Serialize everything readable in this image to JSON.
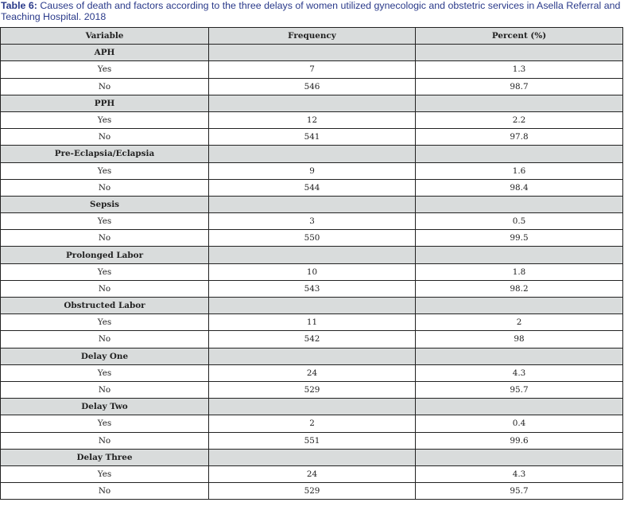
{
  "caption": {
    "label": "Table 6:",
    "text": " Causes of death and factors according to the three delays of women utilized gynecologic and obstetric services in Asella Referral and Teaching Hospital. 2018"
  },
  "table": {
    "headers": [
      "Variable",
      "Frequency",
      "Percent (%)"
    ],
    "groups": [
      {
        "name": "APH",
        "rows": [
          [
            "Yes",
            "7",
            "1.3"
          ],
          [
            "No",
            "546",
            "98.7"
          ]
        ]
      },
      {
        "name": "PPH",
        "rows": [
          [
            "Yes",
            "12",
            "2.2"
          ],
          [
            "No",
            "541",
            "97.8"
          ]
        ]
      },
      {
        "name": "Pre-Eclapsia/Eclapsia",
        "rows": [
          [
            "Yes",
            "9",
            "1.6"
          ],
          [
            "No",
            "544",
            "98.4"
          ]
        ]
      },
      {
        "name": "Sepsis",
        "rows": [
          [
            "Yes",
            "3",
            "0.5"
          ],
          [
            "No",
            "550",
            "99.5"
          ]
        ]
      },
      {
        "name": "Prolonged Labor",
        "rows": [
          [
            "Yes",
            "10",
            "1.8"
          ],
          [
            "No",
            "543",
            "98.2"
          ]
        ]
      },
      {
        "name": "Obstructed Labor",
        "rows": [
          [
            "Yes",
            "11",
            "2"
          ],
          [
            "No",
            "542",
            "98"
          ]
        ]
      },
      {
        "name": "Delay One",
        "rows": [
          [
            "Yes",
            "24",
            "4.3"
          ],
          [
            "No",
            "529",
            "95.7"
          ]
        ]
      },
      {
        "name": "Delay Two",
        "rows": [
          [
            "Yes",
            "2",
            "0.4"
          ],
          [
            "No",
            "551",
            "99.6"
          ]
        ]
      },
      {
        "name": "Delay Three",
        "rows": [
          [
            "Yes",
            "24",
            "4.3"
          ],
          [
            "No",
            "529",
            "95.7"
          ]
        ]
      }
    ]
  }
}
